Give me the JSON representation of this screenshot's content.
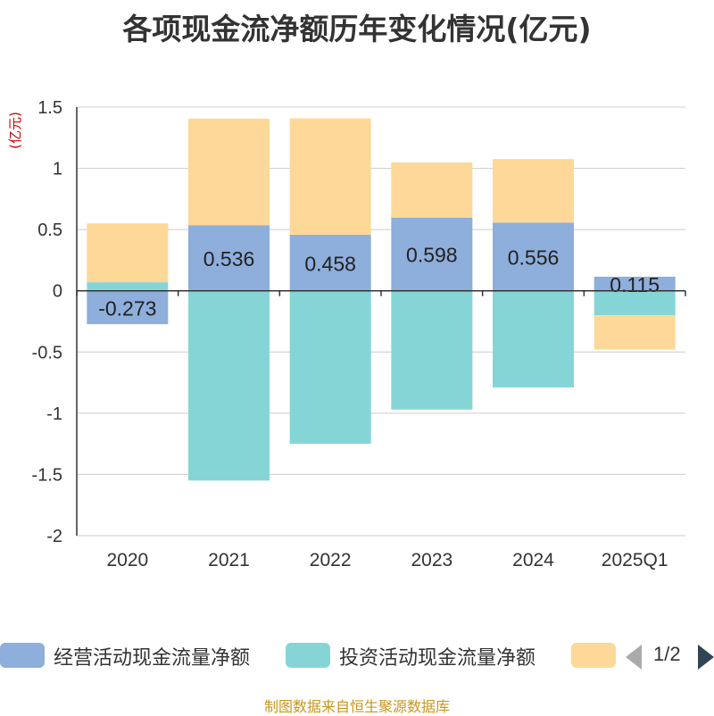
{
  "chart_data": {
    "type": "bar",
    "stacked": true,
    "title": "各项现金流净额历年变化情况(亿元)",
    "ylabel": "(亿元)",
    "categories": [
      "2020",
      "2021",
      "2022",
      "2023",
      "2024",
      "2025Q1"
    ],
    "ylim": [
      -2,
      1.5
    ],
    "yticks": [
      1.5,
      1,
      0.5,
      0,
      -0.5,
      -1,
      -1.5,
      -2
    ],
    "ytick_labels": [
      "1.5",
      "1",
      "0.5",
      "0",
      "-0.5",
      "-1",
      "-1.5",
      "-2"
    ],
    "grid": true,
    "series": [
      {
        "name": "经营活动现金流量净额",
        "color": "#8eaedb",
        "values": [
          -0.273,
          0.536,
          0.458,
          0.598,
          0.556,
          0.115
        ],
        "labels": [
          "-0.273",
          "0.536",
          "0.458",
          "0.598",
          "0.556",
          "0.115"
        ]
      },
      {
        "name": "投资活动现金流量净额",
        "color": "#86d5d6",
        "values": [
          0.07,
          -1.55,
          -1.25,
          -0.97,
          -0.79,
          -0.2
        ]
      },
      {
        "name": "",
        "color": "#fed898",
        "values": [
          0.48,
          0.87,
          0.95,
          0.45,
          0.52,
          -0.28
        ]
      }
    ]
  },
  "legend": {
    "items": [
      {
        "label": "经营活动现金流量净额",
        "color": "#8eaedb"
      },
      {
        "label": "投资活动现金流量净额",
        "color": "#86d5d6"
      },
      {
        "label": "",
        "color": "#fed898"
      }
    ],
    "page": "1/2"
  },
  "footer": {
    "source": "制图数据来自恒生聚源数据库"
  }
}
